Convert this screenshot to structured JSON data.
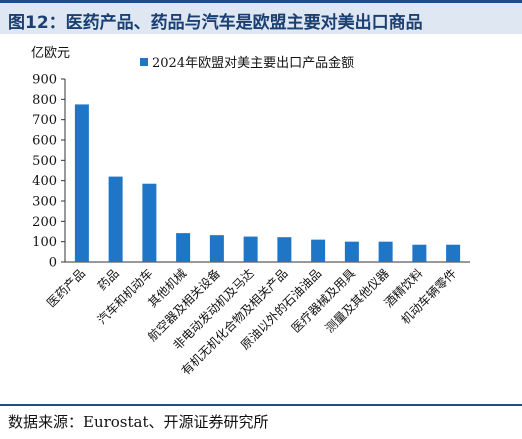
{
  "title": "图12：医药产品、药品与汽车是欧盟主要对美出口商品",
  "source": "数据来源：Eurostat、开源证券研究所",
  "colors": {
    "bar": "#1f75c6",
    "title_accent": "#1a4f8b",
    "title_bg": "#dfe7f2"
  },
  "chart_data": {
    "type": "bar",
    "unit_label": "亿欧元",
    "legend": "2024年欧盟对美主要出口产品金额",
    "legend_position": "top",
    "ylim": [
      0,
      900
    ],
    "yticks": [
      0,
      100,
      200,
      300,
      400,
      500,
      600,
      700,
      800,
      900
    ],
    "grid": false,
    "categories": [
      "医药产品",
      "药品",
      "汽车和机动车",
      "其他机械",
      "航空器及相关设备",
      "非电动发动机及马达",
      "有机无机化合物及相关产品",
      "原油以外的石油油品",
      "医疗器械及用具",
      "测量及其他仪器",
      "酒精饮料",
      "机动车辆零件"
    ],
    "series": [
      {
        "name": "2024年欧盟对美主要出口产品金额",
        "values": [
          775,
          420,
          385,
          142,
          132,
          125,
          122,
          110,
          100,
          100,
          85,
          85
        ]
      }
    ]
  }
}
